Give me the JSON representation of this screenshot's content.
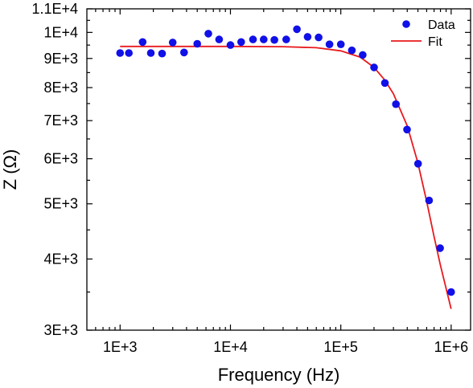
{
  "chart_data": {
    "type": "scatter",
    "xlabel": "Frequency (Hz)",
    "ylabel": "Z (Ω)",
    "x_scale": "log",
    "y_scale": "log",
    "xlim": [
      500,
      1500000
    ],
    "ylim": [
      3000,
      11000
    ],
    "x_ticks": [
      {
        "value": 1000,
        "label": "1E+3"
      },
      {
        "value": 10000,
        "label": "1E+4"
      },
      {
        "value": 100000,
        "label": "1E+5"
      },
      {
        "value": 1000000,
        "label": "1E+6"
      }
    ],
    "y_ticks": [
      {
        "value": 3000,
        "label": "3E+3"
      },
      {
        "value": 4000,
        "label": "4E+3"
      },
      {
        "value": 5000,
        "label": "5E+3"
      },
      {
        "value": 6000,
        "label": "6E+3"
      },
      {
        "value": 7000,
        "label": "7E+3"
      },
      {
        "value": 8000,
        "label": "8E+3"
      },
      {
        "value": 9000,
        "label": "9E+3"
      },
      {
        "value": 10000,
        "label": "1E+4"
      },
      {
        "value": 11000,
        "label": "1.1E+4"
      }
    ],
    "legend_position": "top-right",
    "series": [
      {
        "name": "Data",
        "kind": "scatter",
        "color": "#1010e8",
        "points": [
          [
            1000,
            9200
          ],
          [
            1200,
            9200
          ],
          [
            1600,
            9620
          ],
          [
            1900,
            9200
          ],
          [
            2400,
            9180
          ],
          [
            3000,
            9600
          ],
          [
            3800,
            9220
          ],
          [
            5000,
            9550
          ],
          [
            6300,
            9950
          ],
          [
            7900,
            9720
          ],
          [
            10000,
            9500
          ],
          [
            12500,
            9620
          ],
          [
            16000,
            9720
          ],
          [
            20000,
            9720
          ],
          [
            25000,
            9700
          ],
          [
            32000,
            9720
          ],
          [
            40000,
            10130
          ],
          [
            50000,
            9820
          ],
          [
            63000,
            9800
          ],
          [
            79000,
            9530
          ],
          [
            100000,
            9530
          ],
          [
            126000,
            9300
          ],
          [
            158000,
            9130
          ],
          [
            200000,
            8680
          ],
          [
            251000,
            8150
          ],
          [
            316000,
            7480
          ],
          [
            398000,
            6750
          ],
          [
            501000,
            5880
          ],
          [
            631000,
            5070
          ],
          [
            794000,
            4180
          ],
          [
            1000000,
            3500
          ]
        ]
      },
      {
        "name": "Fit",
        "kind": "line",
        "color": "#e8191d",
        "points": [
          [
            1000,
            9450
          ],
          [
            3000,
            9450
          ],
          [
            10000,
            9450
          ],
          [
            30000,
            9440
          ],
          [
            60000,
            9400
          ],
          [
            100000,
            9280
          ],
          [
            150000,
            9050
          ],
          [
            200000,
            8680
          ],
          [
            250000,
            8250
          ],
          [
            300000,
            7800
          ],
          [
            400000,
            6850
          ],
          [
            500000,
            5900
          ],
          [
            600000,
            5050
          ],
          [
            700000,
            4380
          ],
          [
            800000,
            3900
          ],
          [
            900000,
            3550
          ],
          [
            1000000,
            3270
          ]
        ]
      }
    ]
  }
}
